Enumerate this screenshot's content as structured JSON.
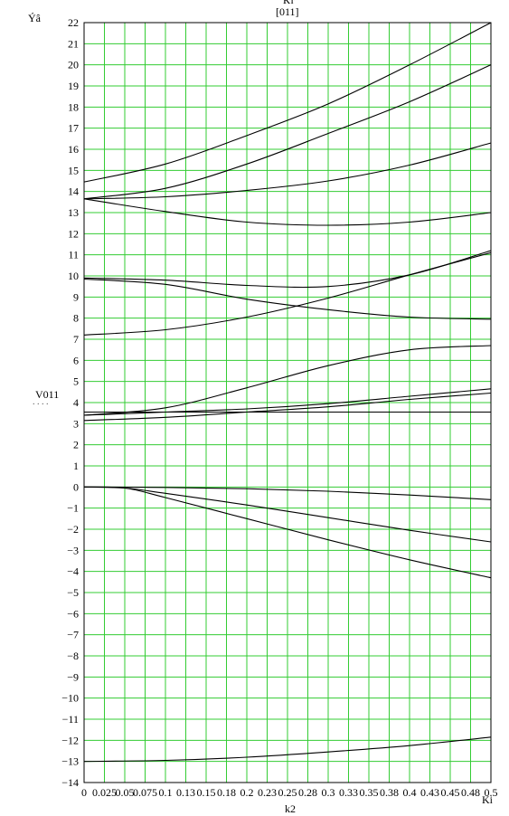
{
  "chart_data": {
    "type": "line",
    "top_labels": [
      "Кт",
      "[011]"
    ],
    "ylabel": "Ýâ",
    "xlabel": "k2",
    "x_axis_end_label": "Ki",
    "left_marker": "V011",
    "left_marker_dots": ". . . .",
    "xlim": [
      0,
      0.5
    ],
    "ylim": [
      -14,
      22
    ],
    "x_ticks": [
      0,
      0.025,
      0.05,
      0.075,
      0.1,
      0.125,
      0.15,
      0.175,
      0.2,
      0.225,
      0.25,
      0.275,
      0.3,
      0.325,
      0.35,
      0.375,
      0.4,
      0.425,
      0.45,
      0.475,
      0.5
    ],
    "x_tick_labels": [
      "0",
      "0.025",
      "0.05",
      "0.075",
      "0.1",
      "0.13",
      "0.15",
      "0.18",
      "0.2",
      "0.23",
      "0.25",
      "0.28",
      "0.3",
      "0.33",
      "0.35",
      "0.38",
      "0.4",
      "0.43",
      "0.45",
      "0.48",
      "0.5"
    ],
    "y_ticks": [
      -14,
      -13,
      -12,
      -11,
      -10,
      -9,
      -8,
      -7,
      -6,
      -5,
      -4,
      -3,
      -2,
      -1,
      0,
      1,
      2,
      3,
      4,
      5,
      6,
      7,
      8,
      9,
      10,
      11,
      12,
      13,
      14,
      15,
      16,
      17,
      18,
      19,
      20,
      21,
      22
    ],
    "grid": true,
    "colors": {
      "grid": "#33cc33",
      "line": "#000000",
      "axis": "#000000"
    },
    "series": [
      {
        "x": [
          0,
          0.1,
          0.2,
          0.3,
          0.4,
          0.5
        ],
        "y": [
          14.45,
          15.3,
          16.65,
          18.15,
          20.0,
          22.0
        ]
      },
      {
        "x": [
          0,
          0.1,
          0.2,
          0.3,
          0.4,
          0.5
        ],
        "y": [
          13.65,
          14.15,
          15.3,
          16.75,
          18.25,
          20.0
        ]
      },
      {
        "x": [
          0,
          0.1,
          0.2,
          0.3,
          0.4,
          0.5
        ],
        "y": [
          13.65,
          13.75,
          14.05,
          14.5,
          15.25,
          16.3
        ]
      },
      {
        "x": [
          0,
          0.1,
          0.2,
          0.3,
          0.4,
          0.5
        ],
        "y": [
          13.65,
          13.05,
          12.55,
          12.4,
          12.55,
          13.0
        ]
      },
      {
        "x": [
          0,
          0.1,
          0.2,
          0.3,
          0.4,
          0.5
        ],
        "y": [
          9.9,
          9.8,
          9.55,
          9.5,
          10.05,
          11.2
        ]
      },
      {
        "x": [
          0,
          0.1,
          0.2,
          0.3,
          0.4,
          0.5
        ],
        "y": [
          9.85,
          9.6,
          8.9,
          8.4,
          8.05,
          7.95
        ]
      },
      {
        "x": [
          0,
          0.1,
          0.2,
          0.3,
          0.4,
          0.5
        ],
        "y": [
          7.2,
          7.45,
          8.05,
          8.95,
          10.05,
          11.1
        ]
      },
      {
        "x": [
          0,
          0.1,
          0.2,
          0.3,
          0.4,
          0.5
        ],
        "y": [
          3.4,
          3.75,
          4.7,
          5.75,
          6.5,
          6.7
        ]
      },
      {
        "x": [
          0,
          0.1,
          0.2,
          0.3,
          0.4,
          0.5
        ],
        "y": [
          3.4,
          3.55,
          3.7,
          3.95,
          4.3,
          4.65
        ]
      },
      {
        "x": [
          0,
          0.1,
          0.2,
          0.3,
          0.4,
          0.5
        ],
        "y": [
          3.15,
          3.3,
          3.55,
          3.8,
          4.15,
          4.45
        ]
      },
      {
        "x": [
          0,
          0.5
        ],
        "y": [
          3.55,
          3.55
        ]
      },
      {
        "x": [
          0,
          0.1,
          0.2,
          0.3,
          0.4,
          0.5
        ],
        "y": [
          0,
          -0.02,
          -0.08,
          -0.2,
          -0.38,
          -0.6
        ]
      },
      {
        "x": [
          0,
          0.05,
          0.1,
          0.2,
          0.3,
          0.4,
          0.5
        ],
        "y": [
          0,
          -0.05,
          -0.3,
          -0.85,
          -1.45,
          -2.05,
          -2.6
        ]
      },
      {
        "x": [
          0,
          0.05,
          0.1,
          0.2,
          0.3,
          0.4,
          0.5
        ],
        "y": [
          0,
          -0.05,
          -0.5,
          -1.5,
          -2.5,
          -3.45,
          -4.3
        ]
      },
      {
        "x": [
          0,
          0.1,
          0.2,
          0.3,
          0.4,
          0.5
        ],
        "y": [
          -13.0,
          -12.95,
          -12.8,
          -12.55,
          -12.25,
          -11.85
        ]
      }
    ]
  }
}
